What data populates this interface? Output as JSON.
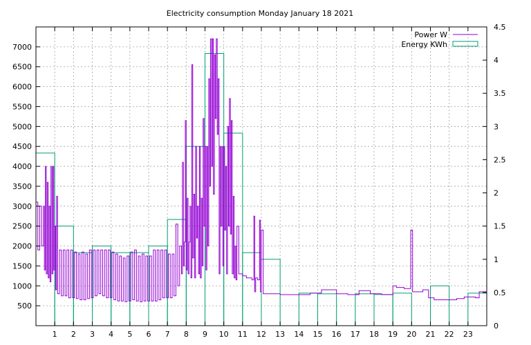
{
  "chart_data": {
    "type": "line",
    "title": "Electricity consumption Monday January 18 2021",
    "grid": true,
    "legend_position": "top-right",
    "x": {
      "range": [
        0,
        24
      ],
      "ticks": [
        1,
        2,
        3,
        4,
        5,
        6,
        7,
        8,
        9,
        10,
        11,
        12,
        13,
        14,
        15,
        16,
        17,
        18,
        19,
        20,
        21,
        22,
        23
      ]
    },
    "y_left": {
      "range": [
        0,
        7500
      ],
      "ticks": [
        500,
        1000,
        1500,
        2000,
        2500,
        3000,
        3500,
        4000,
        4500,
        5000,
        5500,
        6000,
        6500,
        7000
      ]
    },
    "y_right": {
      "range": [
        0,
        4.5
      ],
      "ticks": [
        "0",
        "0.5",
        "1",
        "1.5",
        "2",
        "2.5",
        "3",
        "3.5",
        "4",
        "4.5"
      ]
    },
    "series": [
      {
        "name": "Power W",
        "axis": "left",
        "color": "#9400d3",
        "style": "step",
        "keypoints": [
          [
            0.0,
            3100
          ],
          [
            0.1,
            1900
          ],
          [
            0.2,
            3000
          ],
          [
            0.3,
            2000
          ],
          [
            0.4,
            3000
          ],
          [
            0.45,
            1400
          ],
          [
            0.5,
            4000
          ],
          [
            0.55,
            1300
          ],
          [
            0.6,
            3600
          ],
          [
            0.65,
            1200
          ],
          [
            0.7,
            3000
          ],
          [
            0.75,
            1100
          ],
          [
            0.8,
            4000
          ],
          [
            0.85,
            1300
          ],
          [
            0.9,
            4000
          ],
          [
            0.95,
            1400
          ],
          [
            1.0,
            2500
          ],
          [
            1.05,
            900
          ],
          [
            1.1,
            3250
          ],
          [
            1.15,
            800
          ],
          [
            1.25,
            1900
          ],
          [
            1.35,
            750
          ],
          [
            1.45,
            1900
          ],
          [
            1.55,
            750
          ],
          [
            1.65,
            1900
          ],
          [
            1.75,
            700
          ],
          [
            1.85,
            1900
          ],
          [
            1.95,
            700
          ],
          [
            2.05,
            1850
          ],
          [
            2.15,
            680
          ],
          [
            2.25,
            1800
          ],
          [
            2.35,
            650
          ],
          [
            2.45,
            1850
          ],
          [
            2.55,
            650
          ],
          [
            2.65,
            1800
          ],
          [
            2.75,
            680
          ],
          [
            2.85,
            1900
          ],
          [
            2.95,
            700
          ],
          [
            3.05,
            1900
          ],
          [
            3.15,
            750
          ],
          [
            3.25,
            1900
          ],
          [
            3.35,
            800
          ],
          [
            3.45,
            1900
          ],
          [
            3.55,
            750
          ],
          [
            3.65,
            1900
          ],
          [
            3.75,
            700
          ],
          [
            3.85,
            1900
          ],
          [
            3.95,
            700
          ],
          [
            4.05,
            1850
          ],
          [
            4.15,
            650
          ],
          [
            4.25,
            1800
          ],
          [
            4.35,
            620
          ],
          [
            4.45,
            1750
          ],
          [
            4.55,
            620
          ],
          [
            4.65,
            1700
          ],
          [
            4.75,
            600
          ],
          [
            4.85,
            1750
          ],
          [
            4.95,
            620
          ],
          [
            5.05,
            1850
          ],
          [
            5.15,
            650
          ],
          [
            5.25,
            1900
          ],
          [
            5.35,
            620
          ],
          [
            5.45,
            1750
          ],
          [
            5.55,
            600
          ],
          [
            5.65,
            1800
          ],
          [
            5.75,
            620
          ],
          [
            5.85,
            1750
          ],
          [
            5.95,
            620
          ],
          [
            6.05,
            1750
          ],
          [
            6.15,
            620
          ],
          [
            6.25,
            1900
          ],
          [
            6.35,
            620
          ],
          [
            6.45,
            1900
          ],
          [
            6.55,
            650
          ],
          [
            6.65,
            1900
          ],
          [
            6.75,
            700
          ],
          [
            6.85,
            1900
          ],
          [
            6.95,
            700
          ],
          [
            7.05,
            1800
          ],
          [
            7.15,
            700
          ],
          [
            7.25,
            1800
          ],
          [
            7.35,
            750
          ],
          [
            7.45,
            2550
          ],
          [
            7.55,
            1000
          ],
          [
            7.65,
            2000
          ],
          [
            7.75,
            1300
          ],
          [
            7.8,
            4100
          ],
          [
            7.85,
            1500
          ],
          [
            7.9,
            2100
          ],
          [
            7.95,
            5150
          ],
          [
            8.0,
            1400
          ],
          [
            8.05,
            3200
          ],
          [
            8.1,
            1300
          ],
          [
            8.15,
            2100
          ],
          [
            8.2,
            3000
          ],
          [
            8.25,
            1200
          ],
          [
            8.3,
            6550
          ],
          [
            8.35,
            1700
          ],
          [
            8.4,
            3300
          ],
          [
            8.45,
            1200
          ],
          [
            8.5,
            4500
          ],
          [
            8.55,
            2200
          ],
          [
            8.6,
            3000
          ],
          [
            8.65,
            1300
          ],
          [
            8.7,
            4500
          ],
          [
            8.75,
            1200
          ],
          [
            8.8,
            3200
          ],
          [
            8.85,
            1500
          ],
          [
            8.9,
            5200
          ],
          [
            8.95,
            2500
          ],
          [
            9.0,
            4500
          ],
          [
            9.05,
            1400
          ],
          [
            9.1,
            4500
          ],
          [
            9.15,
            2000
          ],
          [
            9.2,
            6200
          ],
          [
            9.25,
            3500
          ],
          [
            9.3,
            7200
          ],
          [
            9.35,
            4000
          ],
          [
            9.4,
            7200
          ],
          [
            9.45,
            3300
          ],
          [
            9.5,
            6800
          ],
          [
            9.55,
            5200
          ],
          [
            9.6,
            7200
          ],
          [
            9.65,
            4800
          ],
          [
            9.7,
            6200
          ],
          [
            9.75,
            1300
          ],
          [
            9.8,
            4500
          ],
          [
            9.85,
            2500
          ],
          [
            9.9,
            4500
          ],
          [
            9.95,
            1500
          ],
          [
            10.0,
            4500
          ],
          [
            10.05,
            2400
          ],
          [
            10.1,
            4000
          ],
          [
            10.15,
            1300
          ],
          [
            10.2,
            5000
          ],
          [
            10.25,
            2500
          ],
          [
            10.3,
            5700
          ],
          [
            10.35,
            2300
          ],
          [
            10.4,
            5150
          ],
          [
            10.45,
            1300
          ],
          [
            10.5,
            3250
          ],
          [
            10.55,
            1200
          ],
          [
            10.6,
            2000
          ],
          [
            10.65,
            1150
          ],
          [
            10.7,
            2500
          ],
          [
            10.8,
            1300
          ],
          [
            11.0,
            1250
          ],
          [
            11.2,
            1200
          ],
          [
            11.4,
            1200
          ],
          [
            11.5,
            1150
          ],
          [
            11.6,
            2750
          ],
          [
            11.65,
            850
          ],
          [
            11.7,
            1200
          ],
          [
            11.8,
            1150
          ],
          [
            11.9,
            2650
          ],
          [
            11.95,
            850
          ],
          [
            12.0,
            2400
          ],
          [
            12.1,
            800
          ],
          [
            13.0,
            780
          ],
          [
            14.0,
            780
          ],
          [
            14.6,
            820
          ],
          [
            15.2,
            900
          ],
          [
            16.0,
            800
          ],
          [
            16.6,
            780
          ],
          [
            17.2,
            880
          ],
          [
            17.8,
            800
          ],
          [
            18.4,
            780
          ],
          [
            19.0,
            1000
          ],
          [
            19.2,
            960
          ],
          [
            19.6,
            930
          ],
          [
            19.95,
            2400
          ],
          [
            20.05,
            850
          ],
          [
            20.6,
            900
          ],
          [
            20.9,
            700
          ],
          [
            21.2,
            650
          ],
          [
            22.0,
            650
          ],
          [
            22.4,
            680
          ],
          [
            22.8,
            720
          ],
          [
            23.4,
            700
          ],
          [
            23.6,
            850
          ],
          [
            24.0,
            800
          ]
        ]
      },
      {
        "name": "Energy KWh",
        "axis": "right",
        "color": "#009e73",
        "style": "boxes",
        "values": [
          2.6,
          1.5,
          1.1,
          1.2,
          1.1,
          1.1,
          1.2,
          1.6,
          2.7,
          4.1,
          2.9,
          1.1,
          1.0,
          0.0,
          0.49,
          0.48,
          0.0,
          0.48,
          0.47,
          0.49,
          0.0,
          0.6,
          0.0,
          0.49
        ]
      }
    ]
  }
}
